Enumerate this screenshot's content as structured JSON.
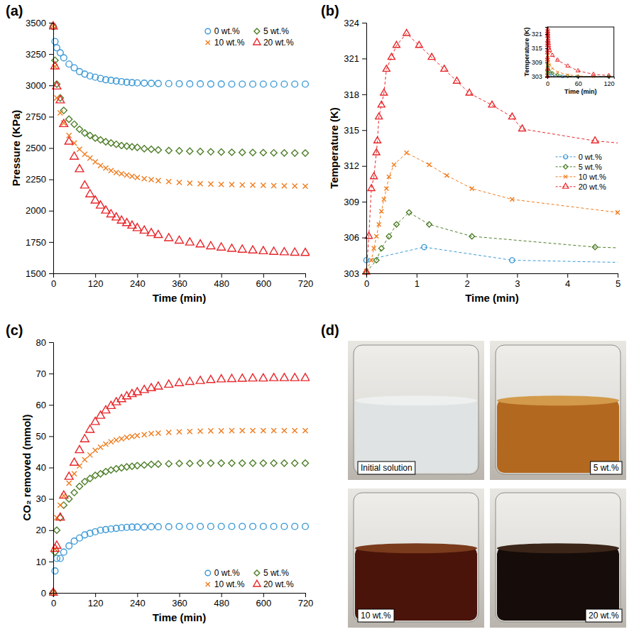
{
  "chart_data": [
    {
      "type": "scatter",
      "title": "(a)",
      "xlabel": "Time (min)",
      "ylabel": "Pressure (KPa)",
      "x": [
        0,
        5,
        10,
        20,
        30,
        45,
        60,
        75,
        90,
        105,
        120,
        135,
        150,
        165,
        180,
        195,
        210,
        225,
        240,
        260,
        280,
        300,
        330,
        360,
        390,
        420,
        450,
        480,
        510,
        540,
        570,
        600,
        630,
        660,
        690,
        720
      ],
      "xlim": [
        0,
        720
      ],
      "xticks": [
        0,
        120,
        240,
        360,
        480,
        600,
        720
      ],
      "ylim": [
        1500,
        3500
      ],
      "yticks": [
        1500,
        1750,
        2000,
        2250,
        2500,
        2750,
        3000,
        3250,
        3500
      ],
      "grid": false,
      "legend": "upper right",
      "series": [
        {
          "name": "0 wt.%",
          "color": "#3d9ad6",
          "marker": "circle",
          "values": [
            3470,
            3350,
            3300,
            3260,
            3220,
            3170,
            3140,
            3110,
            3090,
            3075,
            3065,
            3055,
            3045,
            3040,
            3035,
            3030,
            3025,
            3022,
            3020,
            3018,
            3016,
            3015,
            3014,
            3013,
            3012,
            3012,
            3011,
            3011,
            3010,
            3010,
            3010,
            3010,
            3010,
            3010,
            3010,
            3010
          ]
        },
        {
          "name": "5 wt.%",
          "color": "#4f7f2a",
          "marker": "diamond",
          "values": [
            3470,
            3200,
            3010,
            2900,
            2800,
            2730,
            2690,
            2650,
            2620,
            2600,
            2580,
            2565,
            2550,
            2540,
            2530,
            2520,
            2515,
            2510,
            2505,
            2495,
            2490,
            2485,
            2480,
            2478,
            2475,
            2472,
            2470,
            2468,
            2466,
            2465,
            2464,
            2463,
            2462,
            2461,
            2460,
            2460
          ]
        },
        {
          "name": "10 wt.%",
          "color": "#f07c1e",
          "marker": "x",
          "values": [
            3470,
            3150,
            2900,
            2780,
            2700,
            2600,
            2540,
            2490,
            2450,
            2420,
            2390,
            2360,
            2340,
            2320,
            2305,
            2295,
            2285,
            2275,
            2265,
            2255,
            2248,
            2240,
            2232,
            2225,
            2220,
            2215,
            2212,
            2210,
            2208,
            2206,
            2204,
            2202,
            2200,
            2198,
            2197,
            2196
          ]
        },
        {
          "name": "20 wt.%",
          "color": "#e8262a",
          "marker": "triangle",
          "values": [
            3470,
            3150,
            2990,
            2880,
            2690,
            2550,
            2430,
            2330,
            2200,
            2130,
            2080,
            2040,
            2000,
            1970,
            1945,
            1920,
            1900,
            1880,
            1860,
            1840,
            1820,
            1805,
            1780,
            1760,
            1745,
            1730,
            1715,
            1705,
            1695,
            1688,
            1682,
            1676,
            1671,
            1667,
            1664,
            1662
          ]
        }
      ]
    },
    {
      "type": "line",
      "title": "(b)",
      "xlabel": "Time (min)",
      "ylabel": "Temperature (K)",
      "xlim": [
        0,
        5
      ],
      "xticks": [
        0,
        1,
        2,
        3,
        4,
        5
      ],
      "ylim": [
        303,
        324
      ],
      "yticks": [
        303,
        306,
        309,
        312,
        315,
        318,
        321,
        324
      ],
      "grid": false,
      "legend": "center right",
      "line_style": "dashed",
      "series": [
        {
          "name": "0 wt.%",
          "color": "#3d9ad6",
          "marker": "circle",
          "x": [
            0,
            1.15,
            2.9,
            10,
            30,
            60,
            120
          ],
          "values": [
            304.1,
            305.2,
            304.1,
            303.5,
            303.1,
            303,
            303
          ]
        },
        {
          "name": "5 wt.%",
          "color": "#4f7f2a",
          "marker": "diamond",
          "x": [
            0,
            0.2,
            0.3,
            0.45,
            0.6,
            0.85,
            1.25,
            2.1,
            4.55,
            10,
            20,
            40,
            60,
            120
          ],
          "values": [
            303.1,
            304.1,
            305.1,
            306.1,
            307.1,
            308.1,
            307.1,
            306.1,
            305.2,
            304.5,
            303.8,
            303.2,
            303,
            303
          ]
        },
        {
          "name": "10 wt.%",
          "color": "#f07c1e",
          "marker": "x",
          "x": [
            0,
            0.1,
            0.15,
            0.2,
            0.25,
            0.3,
            0.35,
            0.4,
            0.45,
            0.55,
            0.8,
            1.25,
            1.6,
            2.1,
            2.9,
            5,
            10,
            20,
            40,
            60,
            90,
            120
          ],
          "values": [
            303.2,
            304.1,
            305.1,
            306.1,
            307.1,
            308.2,
            309.2,
            310.1,
            311.1,
            312.1,
            313.1,
            312.1,
            311.2,
            310.1,
            309.2,
            308.1,
            306.5,
            305,
            303.8,
            303.3,
            303,
            303
          ]
        },
        {
          "name": "20 wt.%",
          "color": "#e8262a",
          "marker": "triangle",
          "x": [
            0,
            0.05,
            0.1,
            0.15,
            0.2,
            0.22,
            0.25,
            0.3,
            0.35,
            0.4,
            0.5,
            0.6,
            0.8,
            1.05,
            1.3,
            1.55,
            1.8,
            2.05,
            2.5,
            2.9,
            3.1,
            4.55,
            10,
            20,
            40,
            60,
            90,
            120
          ],
          "values": [
            303.1,
            306.1,
            310.1,
            311.1,
            313.1,
            314.1,
            316.1,
            317.1,
            318.1,
            320.1,
            321.1,
            322.1,
            323.1,
            322.1,
            321.1,
            320.1,
            319.1,
            318.1,
            317.1,
            316.1,
            315.1,
            314.1,
            312,
            310,
            307.5,
            305.5,
            304,
            303.5
          ]
        }
      ],
      "inset": {
        "xlabel": "Time (min)",
        "ylabel": "Temperature (K)",
        "xlim": [
          0,
          130
        ],
        "xticks": [
          0,
          60,
          120
        ],
        "ylim": [
          303,
          324
        ],
        "yticks": [
          303,
          309,
          315,
          321
        ]
      }
    },
    {
      "type": "scatter",
      "title": "(c)",
      "xlabel": "Time (min)",
      "ylabel": "CO₂ removed (mmol)",
      "x": [
        0,
        5,
        10,
        20,
        30,
        45,
        60,
        75,
        90,
        105,
        120,
        135,
        150,
        165,
        180,
        195,
        210,
        225,
        240,
        260,
        280,
        300,
        330,
        360,
        390,
        420,
        450,
        480,
        510,
        540,
        570,
        600,
        630,
        660,
        690,
        720
      ],
      "xlim": [
        0,
        720
      ],
      "xticks": [
        0,
        120,
        240,
        360,
        480,
        600,
        720
      ],
      "ylim": [
        0,
        80
      ],
      "yticks": [
        0,
        10,
        20,
        30,
        40,
        50,
        60,
        70,
        80
      ],
      "grid": false,
      "legend": "lower right",
      "series": [
        {
          "name": "0 wt.%",
          "color": "#3d9ad6",
          "marker": "circle",
          "values": [
            0,
            7,
            11,
            11,
            13,
            15,
            16.5,
            17.5,
            18.5,
            19,
            19.5,
            20,
            20.2,
            20.4,
            20.6,
            20.8,
            20.9,
            21,
            21,
            21,
            21.1,
            21.1,
            21.1,
            21.2,
            21.2,
            21.2,
            21.2,
            21.2,
            21.2,
            21.2,
            21.2,
            21.2,
            21.2,
            21.2,
            21.2,
            21.2
          ]
        },
        {
          "name": "5 wt.%",
          "color": "#4f7f2a",
          "marker": "diamond",
          "values": [
            0,
            13,
            20,
            24,
            28,
            30,
            32,
            34,
            35.5,
            36.5,
            37.5,
            38,
            38.7,
            39.2,
            39.6,
            39.9,
            40.2,
            40.4,
            40.6,
            40.8,
            41,
            41.1,
            41.2,
            41.3,
            41.3,
            41.4,
            41.4,
            41.4,
            41.4,
            41.4,
            41.4,
            41.4,
            41.4,
            41.4,
            41.4,
            41.4
          ]
        },
        {
          "name": "10 wt.%",
          "color": "#f07c1e",
          "marker": "x",
          "values": [
            0,
            14,
            24,
            28,
            31,
            35,
            38,
            40.5,
            42.5,
            44,
            45.5,
            46.5,
            47.5,
            48.2,
            48.8,
            49.2,
            49.6,
            49.9,
            50.2,
            50.5,
            50.8,
            51,
            51.2,
            51.4,
            51.5,
            51.6,
            51.7,
            51.7,
            51.8,
            51.8,
            51.8,
            51.8,
            51.8,
            51.8,
            51.8,
            51.8
          ]
        },
        {
          "name": "20 wt.%",
          "color": "#e8262a",
          "marker": "triangle",
          "values": [
            0,
            14,
            15,
            24,
            31,
            37,
            41.5,
            45.5,
            49,
            52,
            54.5,
            56.5,
            58.2,
            59.6,
            60.8,
            61.8,
            62.7,
            63.4,
            64,
            64.7,
            65.3,
            65.8,
            66.4,
            66.9,
            67.3,
            67.6,
            67.9,
            68.1,
            68.2,
            68.3,
            68.4,
            68.4,
            68.5,
            68.5,
            68.5,
            68.5
          ]
        }
      ]
    }
  ],
  "photos": {
    "title": "(d)",
    "labels": [
      "Initial solution",
      "5 wt.%",
      "10 wt.%",
      "20 wt.%"
    ]
  }
}
